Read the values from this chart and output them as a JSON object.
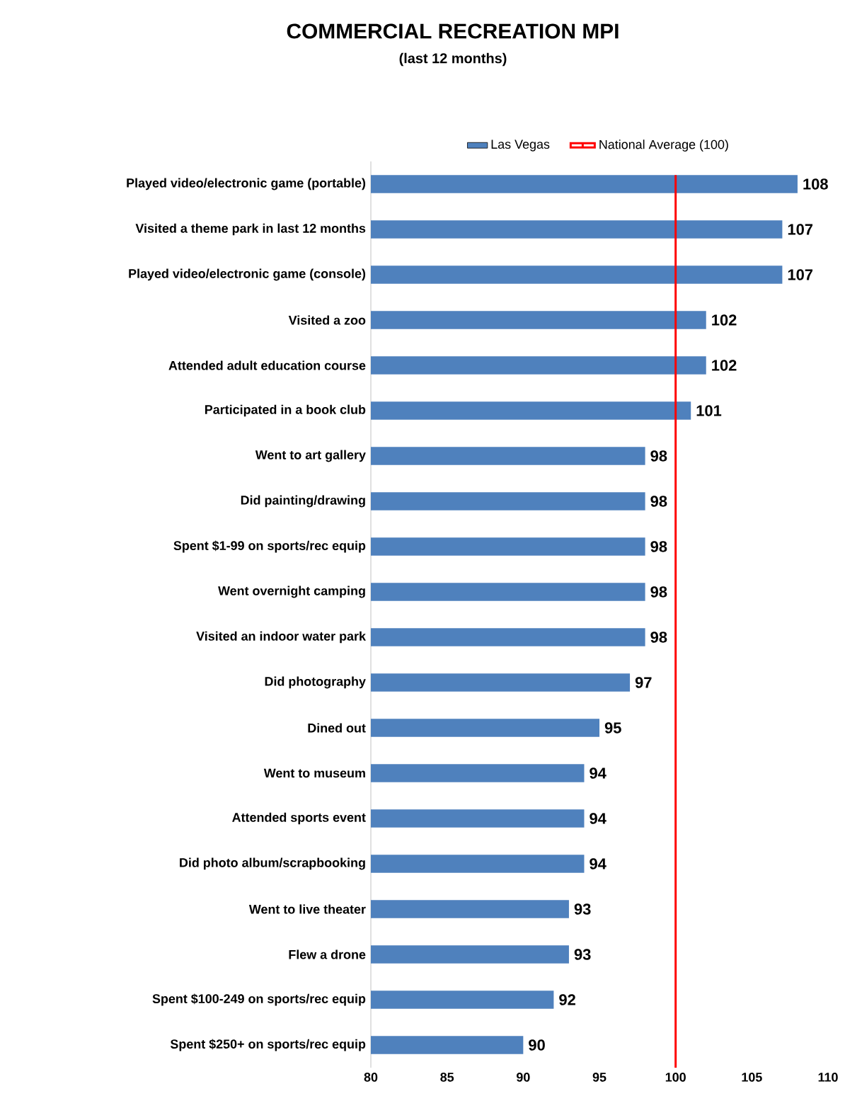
{
  "chart_data": {
    "type": "bar",
    "orientation": "horizontal",
    "title": "COMMERCIAL RECREATION MPI",
    "subtitle": "(last 12 months)",
    "categories": [
      "Played video/electronic game (portable)",
      "Visited a theme park in last 12 months",
      "Played video/electronic game (console)",
      "Visited a zoo",
      "Attended adult education course",
      "Participated in a book club",
      "Went to art gallery",
      "Did painting/drawing",
      "Spent  $1-99 on sports/rec equip",
      "Went overnight camping",
      "Visited an indoor water park",
      "Did photography",
      "Dined out",
      "Went to museum",
      "Attended sports event",
      "Did photo album/scrapbooking",
      "Went to live theater",
      "Flew a drone",
      "Spent $100-249 on sports/rec equip",
      "Spent  $250+ on sports/rec equip"
    ],
    "series": [
      {
        "name": "Las Vegas",
        "color": "#4f81bd",
        "values": [
          108,
          107,
          107,
          102,
          102,
          101,
          98,
          98,
          98,
          98,
          98,
          97,
          95,
          94,
          94,
          94,
          93,
          93,
          92,
          90
        ]
      }
    ],
    "xlim": [
      80,
      110
    ],
    "xticks": [
      80,
      85,
      90,
      95,
      100,
      105,
      110
    ],
    "ref_lines": [
      {
        "axis": "x",
        "value": 100,
        "label": "National Average (100)",
        "color": "#ff0000"
      }
    ],
    "data_labels": true,
    "legend": "top"
  }
}
